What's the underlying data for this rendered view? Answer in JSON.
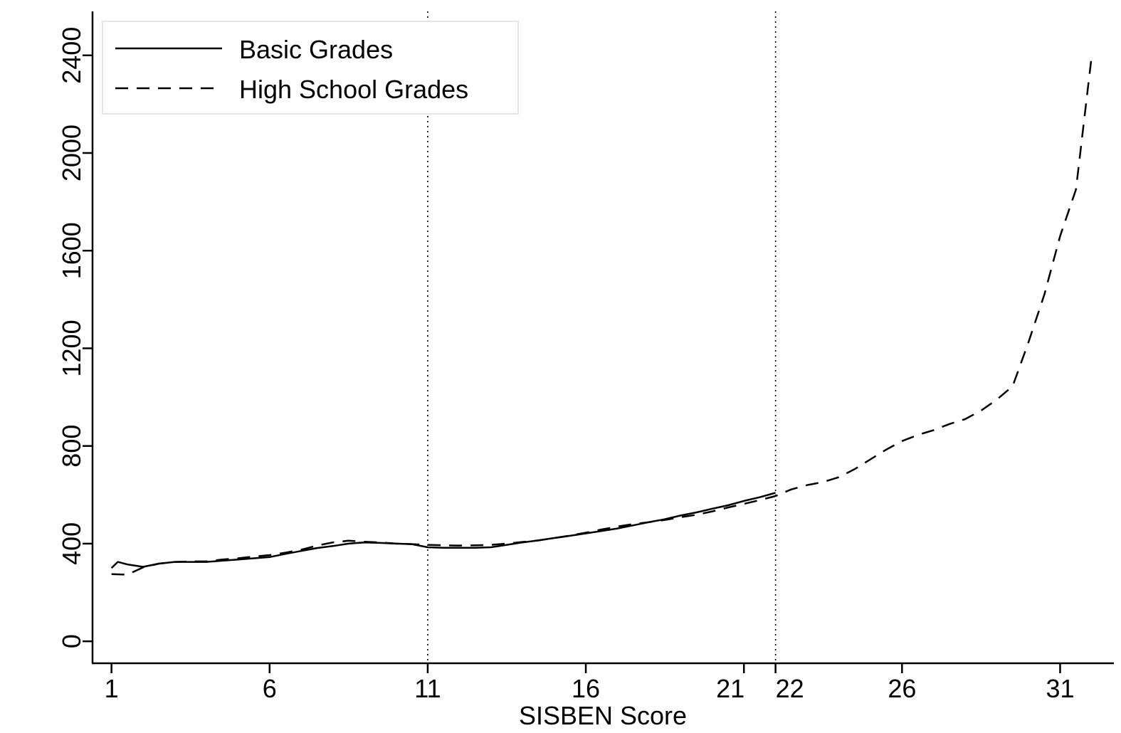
{
  "chart_data": {
    "type": "line",
    "xlabel": "SISBEN Score",
    "ylabel": "",
    "xlim": [
      0.4,
      32.7
    ],
    "ylim": [
      -90,
      2580
    ],
    "xticks": [
      1,
      6,
      11,
      16,
      21,
      22,
      26,
      31
    ],
    "xtick_labels": [
      "1",
      "6",
      "11",
      "16",
      "21",
      "22",
      "26",
      "31"
    ],
    "yticks": [
      0,
      400,
      800,
      1200,
      1600,
      2000,
      2400
    ],
    "ytick_labels": [
      "0",
      "400",
      "800",
      "1200",
      "1600",
      "2000",
      "2400"
    ],
    "vlines": [
      11,
      22
    ],
    "grid": false,
    "legend_position": "top-left",
    "series": [
      {
        "name": "Basic Grades",
        "style": "solid",
        "x": [
          1,
          1.2,
          1.5,
          2,
          2.5,
          3,
          3.5,
          4,
          4.5,
          5,
          5.5,
          6,
          6.5,
          7,
          7.5,
          8,
          8.5,
          9,
          9.5,
          10,
          10.5,
          11,
          11.5,
          12,
          12.5,
          13,
          13.5,
          14,
          14.5,
          15,
          15.5,
          16,
          16.5,
          17,
          17.5,
          18,
          18.5,
          19,
          19.5,
          20,
          20.5,
          21,
          21.5,
          22
        ],
        "y": [
          300,
          325,
          315,
          305,
          318,
          325,
          325,
          325,
          330,
          335,
          340,
          345,
          358,
          370,
          382,
          390,
          400,
          405,
          403,
          400,
          398,
          385,
          383,
          383,
          383,
          385,
          395,
          405,
          413,
          423,
          432,
          442,
          452,
          462,
          475,
          488,
          500,
          515,
          528,
          543,
          557,
          575,
          590,
          608
        ]
      },
      {
        "name": "High School Grades",
        "style": "dashed",
        "x": [
          1,
          1.5,
          2,
          2.5,
          3,
          3.5,
          4,
          4.5,
          5,
          5.5,
          6,
          6.5,
          7,
          7.5,
          8,
          8.5,
          9,
          9.5,
          10,
          10.5,
          11,
          11.5,
          12,
          12.5,
          13,
          13.5,
          14,
          14.5,
          15,
          15.5,
          16,
          16.5,
          17,
          17.5,
          18,
          18.5,
          19,
          19.5,
          20,
          20.5,
          21,
          21.5,
          22,
          22.5,
          23,
          23.5,
          24,
          24.5,
          25,
          25.5,
          26,
          26.5,
          27,
          27.5,
          28,
          28.5,
          29,
          29.5,
          30,
          30.5,
          31,
          31.5,
          32
        ],
        "y": [
          275,
          273,
          303,
          318,
          325,
          327,
          327,
          335,
          340,
          347,
          353,
          363,
          375,
          392,
          405,
          412,
          408,
          405,
          400,
          398,
          395,
          393,
          392,
          393,
          395,
          400,
          407,
          413,
          423,
          433,
          445,
          458,
          470,
          480,
          488,
          497,
          508,
          518,
          532,
          548,
          563,
          578,
          595,
          622,
          640,
          652,
          672,
          705,
          745,
          785,
          820,
          845,
          865,
          890,
          910,
          945,
          990,
          1045,
          1225,
          1420,
          1660,
          1850,
          2400
        ]
      }
    ]
  }
}
